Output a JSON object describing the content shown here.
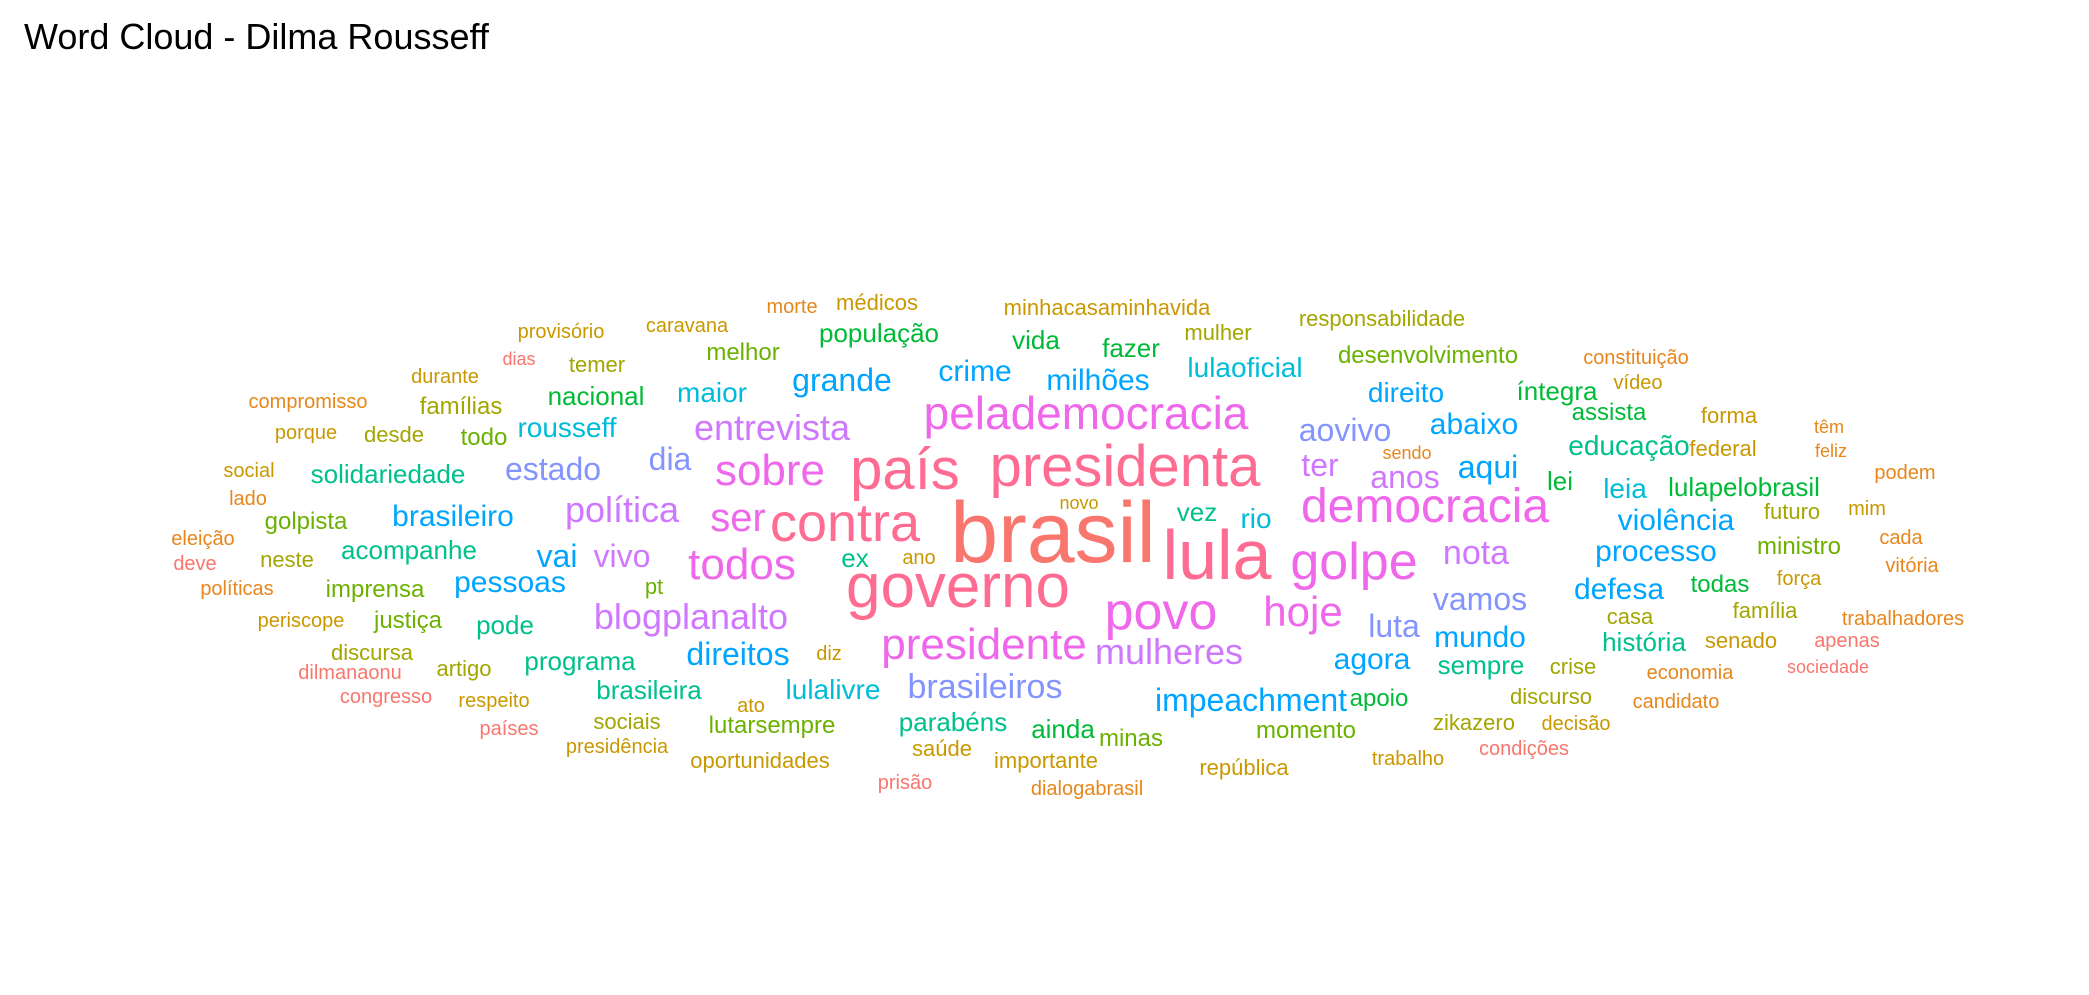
{
  "title": "Word Cloud - Dilma Rousseff",
  "palette": {
    "red": "#F8766D",
    "orange": "#E7861B",
    "gold": "#C99800",
    "olive": "#A3A500",
    "lime": "#6BB100",
    "green": "#00BA38",
    "teal": "#00C08B",
    "cyan": "#00BCD8",
    "blue": "#00A5FF",
    "lavender": "#8494FF",
    "purple": "#CF78FF",
    "magenta": "#EF67EB",
    "pink": "#FF6C91"
  },
  "words": [
    {
      "text": "brasil",
      "color": "red"
    },
    {
      "text": "lula",
      "color": "pink"
    },
    {
      "text": "governo",
      "color": "pink"
    },
    {
      "text": "presidenta",
      "color": "pink"
    },
    {
      "text": "país",
      "color": "pink"
    },
    {
      "text": "contra",
      "color": "pink"
    },
    {
      "text": "golpe",
      "color": "magenta"
    },
    {
      "text": "povo",
      "color": "magenta"
    },
    {
      "text": "democracia",
      "color": "magenta"
    },
    {
      "text": "pelademocracia",
      "color": "magenta"
    },
    {
      "text": "presidente",
      "color": "magenta"
    },
    {
      "text": "sobre",
      "color": "magenta"
    },
    {
      "text": "todos",
      "color": "magenta"
    },
    {
      "text": "hoje",
      "color": "magenta"
    },
    {
      "text": "ser",
      "color": "magenta"
    },
    {
      "text": "blogplanalto",
      "color": "purple"
    },
    {
      "text": "entrevista",
      "color": "purple"
    },
    {
      "text": "política",
      "color": "purple"
    },
    {
      "text": "mulheres",
      "color": "purple"
    },
    {
      "text": "anos",
      "color": "purple"
    },
    {
      "text": "ter",
      "color": "purple"
    },
    {
      "text": "nota",
      "color": "purple"
    },
    {
      "text": "vivo",
      "color": "purple"
    },
    {
      "text": "aovivo",
      "color": "lavender"
    },
    {
      "text": "brasileiros",
      "color": "lavender"
    },
    {
      "text": "vamos",
      "color": "lavender"
    },
    {
      "text": "luta",
      "color": "lavender"
    },
    {
      "text": "estado",
      "color": "lavender"
    },
    {
      "text": "dia",
      "color": "lavender"
    },
    {
      "text": "impeachment",
      "color": "blue"
    },
    {
      "text": "direitos",
      "color": "blue"
    },
    {
      "text": "grande",
      "color": "blue"
    },
    {
      "text": "mundo",
      "color": "blue"
    },
    {
      "text": "agora",
      "color": "blue"
    },
    {
      "text": "processo",
      "color": "blue"
    },
    {
      "text": "aqui",
      "color": "blue"
    },
    {
      "text": "abaixo",
      "color": "blue"
    },
    {
      "text": "milhões",
      "color": "blue"
    },
    {
      "text": "crime",
      "color": "blue"
    },
    {
      "text": "brasileiro",
      "color": "blue"
    },
    {
      "text": "pessoas",
      "color": "blue"
    },
    {
      "text": "vai",
      "color": "blue"
    },
    {
      "text": "violência",
      "color": "blue"
    },
    {
      "text": "defesa",
      "color": "blue"
    },
    {
      "text": "direito",
      "color": "blue"
    },
    {
      "text": "rousseff",
      "color": "cyan"
    },
    {
      "text": "lulaoficial",
      "color": "cyan"
    },
    {
      "text": "maior",
      "color": "cyan"
    },
    {
      "text": "leia",
      "color": "cyan"
    },
    {
      "text": "rio",
      "color": "cyan"
    },
    {
      "text": "lulalivre",
      "color": "cyan"
    },
    {
      "text": "educação",
      "color": "teal"
    },
    {
      "text": "solidariedade",
      "color": "teal"
    },
    {
      "text": "acompanhe",
      "color": "teal"
    },
    {
      "text": "programa",
      "color": "teal"
    },
    {
      "text": "brasileira",
      "color": "teal"
    },
    {
      "text": "sempre",
      "color": "teal"
    },
    {
      "text": "pode",
      "color": "teal"
    },
    {
      "text": "história",
      "color": "teal"
    },
    {
      "text": "parabéns",
      "color": "teal"
    },
    {
      "text": "vez",
      "color": "teal"
    },
    {
      "text": "ex",
      "color": "teal"
    },
    {
      "text": "íntegra",
      "color": "green"
    },
    {
      "text": "lulapelobrasil",
      "color": "green"
    },
    {
      "text": "nacional",
      "color": "green"
    },
    {
      "text": "população",
      "color": "green"
    },
    {
      "text": "fazer",
      "color": "green"
    },
    {
      "text": "todas",
      "color": "green"
    },
    {
      "text": "apoio",
      "color": "green"
    },
    {
      "text": "ainda",
      "color": "green"
    },
    {
      "text": "lei",
      "color": "green"
    },
    {
      "text": "vida",
      "color": "green"
    },
    {
      "text": "assista",
      "color": "green"
    },
    {
      "text": "desenvolvimento",
      "color": "lime"
    },
    {
      "text": "melhor",
      "color": "lime"
    },
    {
      "text": "lutarsempre",
      "color": "lime"
    },
    {
      "text": "imprensa",
      "color": "lime"
    },
    {
      "text": "golpista",
      "color": "lime"
    },
    {
      "text": "minas",
      "color": "lime"
    },
    {
      "text": "momento",
      "color": "lime"
    },
    {
      "text": "ministro",
      "color": "lime"
    },
    {
      "text": "todo",
      "color": "lime"
    },
    {
      "text": "justiça",
      "color": "lime"
    },
    {
      "text": "pt",
      "color": "lime"
    },
    {
      "text": "responsabilidade",
      "color": "olive"
    },
    {
      "text": "mulher",
      "color": "olive"
    },
    {
      "text": "famílias",
      "color": "olive"
    },
    {
      "text": "temer",
      "color": "olive"
    },
    {
      "text": "desde",
      "color": "olive"
    },
    {
      "text": "neste",
      "color": "olive"
    },
    {
      "text": "artigo",
      "color": "olive"
    },
    {
      "text": "discursa",
      "color": "olive"
    },
    {
      "text": "discurso",
      "color": "olive"
    },
    {
      "text": "crise",
      "color": "olive"
    },
    {
      "text": "família",
      "color": "olive"
    },
    {
      "text": "futuro",
      "color": "olive"
    },
    {
      "text": "sociais",
      "color": "olive"
    },
    {
      "text": "zikazero",
      "color": "olive"
    },
    {
      "text": "casa",
      "color": "olive"
    },
    {
      "text": "médicos",
      "color": "gold"
    },
    {
      "text": "minhacasaminhavida",
      "color": "gold"
    },
    {
      "text": "caravana",
      "color": "gold"
    },
    {
      "text": "provisório",
      "color": "gold"
    },
    {
      "text": "durante",
      "color": "gold"
    },
    {
      "text": "porque",
      "color": "gold"
    },
    {
      "text": "social",
      "color": "gold"
    },
    {
      "text": "periscope",
      "color": "gold"
    },
    {
      "text": "diz",
      "color": "gold"
    },
    {
      "text": "ano",
      "color": "gold"
    },
    {
      "text": "ato",
      "color": "gold"
    },
    {
      "text": "saúde",
      "color": "gold"
    },
    {
      "text": "importante",
      "color": "gold"
    },
    {
      "text": "oportunidades",
      "color": "gold"
    },
    {
      "text": "presidência",
      "color": "gold"
    },
    {
      "text": "república",
      "color": "gold"
    },
    {
      "text": "senado",
      "color": "gold"
    },
    {
      "text": "forma",
      "color": "gold"
    },
    {
      "text": "federal",
      "color": "gold"
    },
    {
      "text": "trabalho",
      "color": "gold"
    },
    {
      "text": "respeito",
      "color": "gold"
    },
    {
      "text": "decisão",
      "color": "gold"
    },
    {
      "text": "força",
      "color": "gold"
    },
    {
      "text": "vídeo",
      "color": "gold"
    },
    {
      "text": "mim",
      "color": "gold"
    },
    {
      "text": "novo",
      "color": "gold"
    },
    {
      "text": "morte",
      "color": "orange"
    },
    {
      "text": "compromisso",
      "color": "orange"
    },
    {
      "text": "constituição",
      "color": "orange"
    },
    {
      "text": "dias",
      "color": "red"
    },
    {
      "text": "lado",
      "color": "orange"
    },
    {
      "text": "eleição",
      "color": "orange"
    },
    {
      "text": "políticas",
      "color": "orange"
    },
    {
      "text": "economia",
      "color": "orange"
    },
    {
      "text": "candidato",
      "color": "orange"
    },
    {
      "text": "trabalhadores",
      "color": "orange"
    },
    {
      "text": "podem",
      "color": "orange"
    },
    {
      "text": "têm",
      "color": "orange"
    },
    {
      "text": "feliz",
      "color": "orange"
    },
    {
      "text": "cada",
      "color": "orange"
    },
    {
      "text": "vitória",
      "color": "orange"
    },
    {
      "text": "sendo",
      "color": "orange"
    },
    {
      "text": "dialogabrasil",
      "color": "orange"
    },
    {
      "text": "condições",
      "color": "red"
    },
    {
      "text": "prisão",
      "color": "red"
    },
    {
      "text": "países",
      "color": "red"
    },
    {
      "text": "congresso",
      "color": "red"
    },
    {
      "text": "dilmanaonu",
      "color": "red"
    },
    {
      "text": "deve",
      "color": "red"
    },
    {
      "text": "apenas",
      "color": "red"
    },
    {
      "text": "sociedade",
      "color": "red"
    }
  ]
}
